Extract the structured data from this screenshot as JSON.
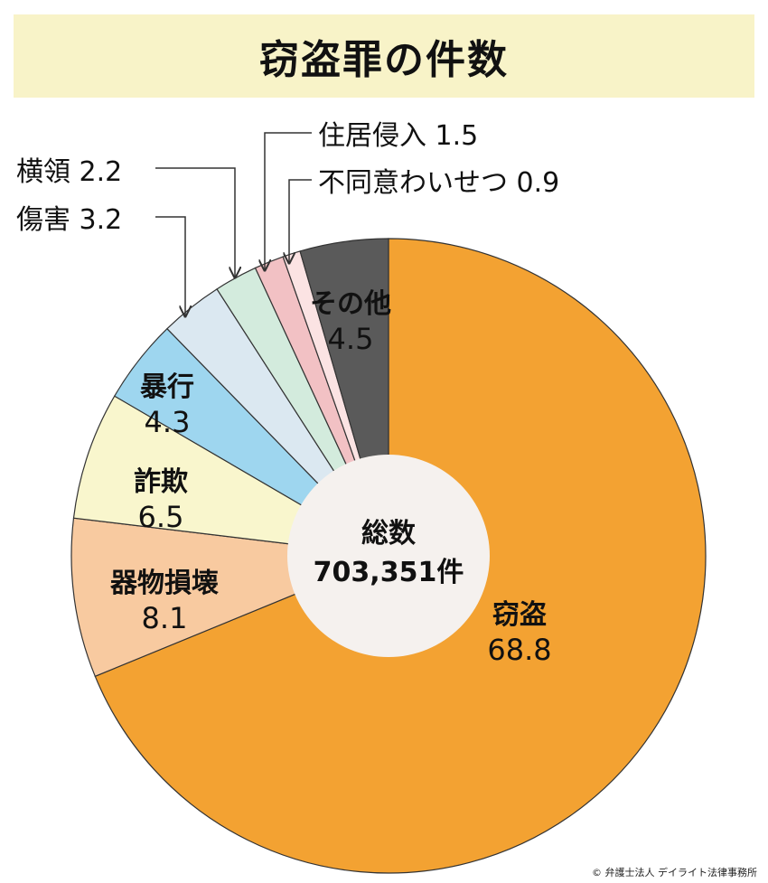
{
  "title": "窃盗罪の件数",
  "credit": "© 弁護士法人 デイライト法律事務所",
  "chart_data": {
    "type": "pie",
    "title": "窃盗罪の件数",
    "center_label": "総数",
    "center_value": "703,351件",
    "slices": [
      {
        "label": "窃盗",
        "value": 68.8,
        "color": "#f3a232",
        "placement": "inside"
      },
      {
        "label": "器物損壊",
        "value": 8.1,
        "color": "#f8caa0",
        "placement": "inside"
      },
      {
        "label": "詐欺",
        "value": 6.5,
        "color": "#f9f6cd",
        "placement": "inside"
      },
      {
        "label": "暴行",
        "value": 4.3,
        "color": "#9ed6ef",
        "placement": "inside"
      },
      {
        "label": "傷害",
        "value": 3.2,
        "color": "#dbe8f1",
        "placement": "outside"
      },
      {
        "label": "横領",
        "value": 2.2,
        "color": "#d3ebdd",
        "placement": "outside"
      },
      {
        "label": "住居侵入",
        "value": 1.5,
        "color": "#f2c1c4",
        "placement": "outside"
      },
      {
        "label": "不同意わいせつ",
        "value": 0.9,
        "color": "#fbe3e3",
        "placement": "outside"
      },
      {
        "label": "その他",
        "value": 4.5,
        "color": "#5a5a5a",
        "placement": "inside"
      }
    ]
  }
}
